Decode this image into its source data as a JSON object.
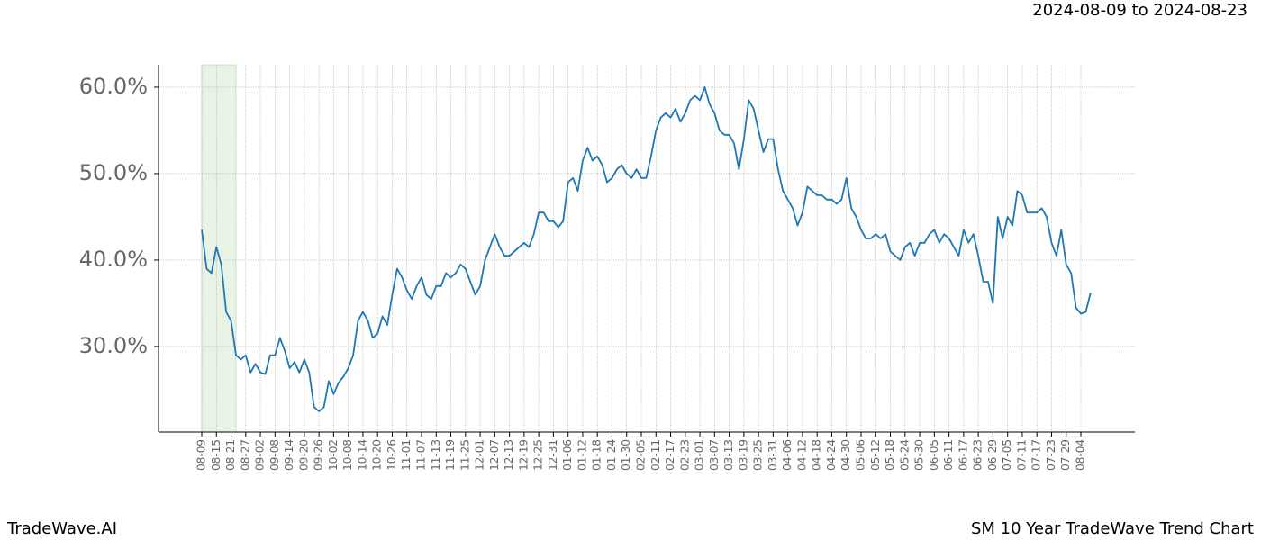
{
  "chart_data": {
    "type": "line",
    "title": "SM 10 Year TradeWave Trend Chart",
    "subtitle": "2024-08-09 to 2024-08-23",
    "source": "TradeWave.AI",
    "color": "#1f77b4",
    "grid": true,
    "categories": [
      "08-09",
      null,
      null,
      "08-15",
      null,
      null,
      "08-21",
      null,
      null,
      "08-27",
      null,
      null,
      "09-02",
      null,
      null,
      "09-08",
      null,
      null,
      "09-14",
      null,
      null,
      "09-20",
      null,
      null,
      "09-26",
      null,
      null,
      "10-02",
      null,
      null,
      "10-08",
      null,
      null,
      "10-14",
      null,
      null,
      "10-20",
      null,
      null,
      "10-26",
      null,
      null,
      "11-01",
      null,
      null,
      "11-07",
      null,
      null,
      "11-13",
      null,
      null,
      "11-19",
      null,
      null,
      "11-25",
      null,
      null,
      "12-01",
      null,
      null,
      "12-07",
      null,
      null,
      "12-13",
      null,
      null,
      "12-19",
      null,
      null,
      "12-25",
      null,
      null,
      "12-31",
      null,
      null,
      "01-06",
      null,
      null,
      "01-12",
      null,
      null,
      "01-18",
      null,
      null,
      "01-24",
      null,
      null,
      "01-30",
      null,
      null,
      "02-05",
      null,
      null,
      "02-11",
      null,
      null,
      "02-17",
      null,
      null,
      "02-23",
      null,
      null,
      "03-01",
      null,
      null,
      "03-07",
      null,
      null,
      "03-13",
      null,
      null,
      "03-19",
      null,
      null,
      "03-25",
      null,
      null,
      "03-31",
      null,
      null,
      "04-06",
      null,
      null,
      "04-12",
      null,
      null,
      "04-18",
      null,
      null,
      "04-24",
      null,
      null,
      "04-30",
      null,
      null,
      "05-06",
      null,
      null,
      "05-12",
      null,
      null,
      "05-18",
      null,
      null,
      "05-24",
      null,
      null,
      "05-30",
      null,
      null,
      "06-05",
      null,
      null,
      "06-11",
      null,
      null,
      "06-17",
      null,
      null,
      "06-23",
      null,
      null,
      "06-29",
      null,
      null,
      "07-05",
      null,
      null,
      "07-11",
      null,
      null,
      "07-17",
      null,
      null,
      "07-23",
      null,
      null,
      "07-29",
      null,
      null,
      "08-04",
      null,
      null
    ],
    "values": [
      43.5,
      39,
      38.5,
      41.5,
      39.5,
      34,
      33,
      29,
      28.5,
      29,
      27,
      28,
      27,
      26.8,
      29,
      29,
      31,
      29.5,
      27.5,
      28.2,
      27,
      28.5,
      27,
      23,
      22.5,
      23,
      26,
      24.5,
      25.8,
      26.5,
      27.5,
      29,
      33,
      34,
      33,
      31,
      31.5,
      33.5,
      32.5,
      36,
      39,
      38,
      36.5,
      35.5,
      37,
      38,
      36,
      35.5,
      37,
      37,
      38.5,
      38,
      38.5,
      39.5,
      39,
      37.5,
      36,
      37,
      40,
      41.5,
      43,
      41.5,
      40.5,
      40.5,
      41,
      41.5,
      42,
      41.5,
      43,
      45.5,
      45.5,
      44.5,
      44.5,
      43.8,
      44.5,
      49,
      49.5,
      48,
      51.5,
      53,
      51.5,
      52,
      51,
      49,
      49.5,
      50.5,
      51,
      50,
      49.5,
      50.5,
      49.5,
      49.5,
      52,
      55,
      56.5,
      57,
      56.5,
      57.5,
      56,
      57,
      58.5,
      59,
      58.5,
      60,
      58,
      57,
      55,
      54.5,
      54.5,
      53.5,
      50.5,
      54,
      58.5,
      57.5,
      55,
      52.5,
      54,
      54,
      50.5,
      48,
      47,
      46,
      44,
      45.5,
      48.5,
      48,
      47.5,
      47.5,
      47,
      47,
      46.5,
      47,
      49.5,
      46,
      45,
      43.5,
      42.5,
      42.5,
      43,
      42.5,
      43,
      41,
      40.5,
      40,
      41.5,
      42,
      40.5,
      42,
      42,
      43,
      43.5,
      42,
      43,
      42.5,
      41.5,
      40.5,
      43.5,
      42,
      43,
      40.5,
      37.5,
      37.5,
      35,
      45,
      42.5,
      45,
      44,
      48,
      47.5,
      45.5,
      45.5,
      45.5,
      46,
      45,
      42,
      40.5,
      43.5,
      39.5,
      38.5,
      34.5,
      33.8,
      34,
      36.2
    ],
    "ylim": [
      20.1,
      62.6
    ],
    "yticks": [
      {
        "value": 30,
        "label": "30.0%"
      },
      {
        "value": 40,
        "label": "40.0%"
      },
      {
        "value": 50,
        "label": "50.0%"
      },
      {
        "value": 60,
        "label": "60.0%"
      }
    ]
  }
}
